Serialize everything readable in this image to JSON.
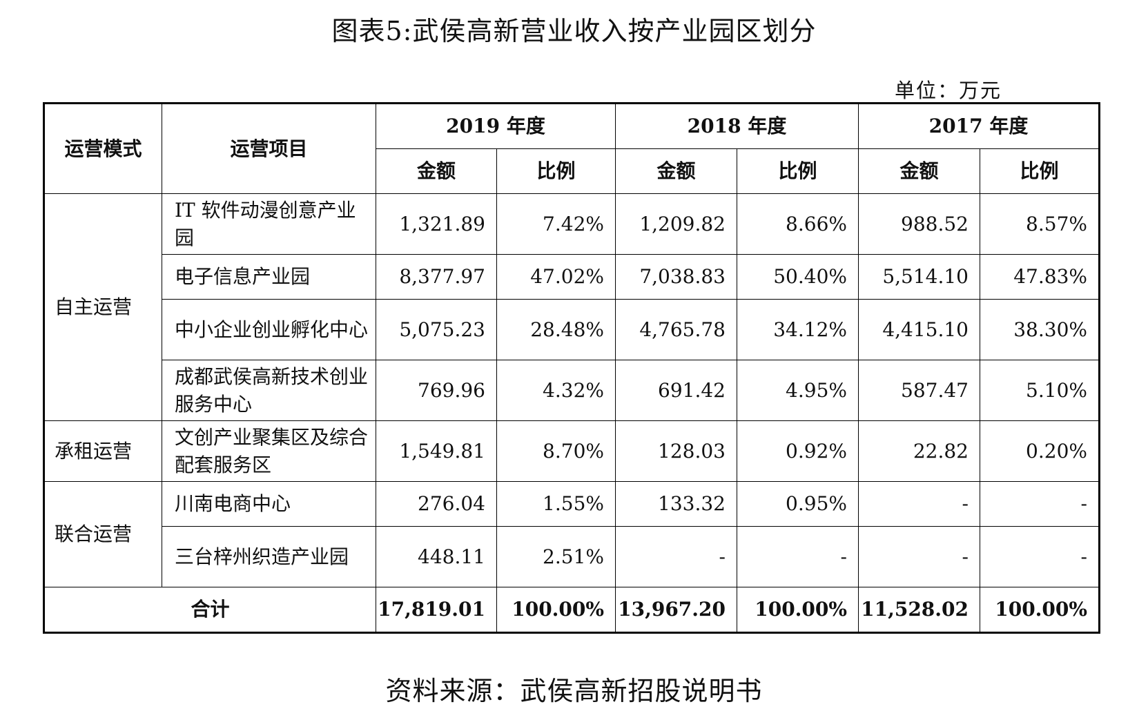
{
  "title": "图表5:武侯高新营业收入按产业园区划分",
  "unit": "单位：万元",
  "source": "资料来源：武侯高新招股说明书",
  "chart_data": {
    "type": "table",
    "header": {
      "mode": "运营模式",
      "project": "运营项目",
      "years": [
        "2019 年度",
        "2018 年度",
        "2017 年度"
      ],
      "amount": "金额",
      "ratio": "比例"
    },
    "groups": [
      {
        "mode": "自主运营",
        "rows": [
          {
            "project": "IT 软件动漫创意产业园",
            "values": [
              "1,321.89",
              "7.42%",
              "1,209.82",
              "8.66%",
              "988.52",
              "8.57%"
            ]
          },
          {
            "project": "电子信息产业园",
            "values": [
              "8,377.97",
              "47.02%",
              "7,038.83",
              "50.40%",
              "5,514.10",
              "47.83%"
            ]
          },
          {
            "project": "中小企业创业孵化中心",
            "values": [
              "5,075.23",
              "28.48%",
              "4,765.78",
              "34.12%",
              "4,415.10",
              "38.30%"
            ]
          },
          {
            "project": "成都武侯高新技术创业服务中心",
            "values": [
              "769.96",
              "4.32%",
              "691.42",
              "4.95%",
              "587.47",
              "5.10%"
            ]
          }
        ]
      },
      {
        "mode": "承租运营",
        "rows": [
          {
            "project": "文创产业聚集区及综合配套服务区",
            "values": [
              "1,549.81",
              "8.70%",
              "128.03",
              "0.92%",
              "22.82",
              "0.20%"
            ]
          }
        ]
      },
      {
        "mode": "联合运营",
        "rows": [
          {
            "project": "川南电商中心",
            "values": [
              "276.04",
              "1.55%",
              "133.32",
              "0.95%",
              "-",
              "-"
            ]
          },
          {
            "project": "三台梓州织造产业园",
            "values": [
              "448.11",
              "2.51%",
              "-",
              "-",
              "-",
              "-"
            ]
          }
        ]
      }
    ],
    "total": {
      "label": "合计",
      "values": [
        "17,819.01",
        "100.00%",
        "13,967.20",
        "100.00%",
        "11,528.02",
        "100.00%"
      ]
    }
  }
}
